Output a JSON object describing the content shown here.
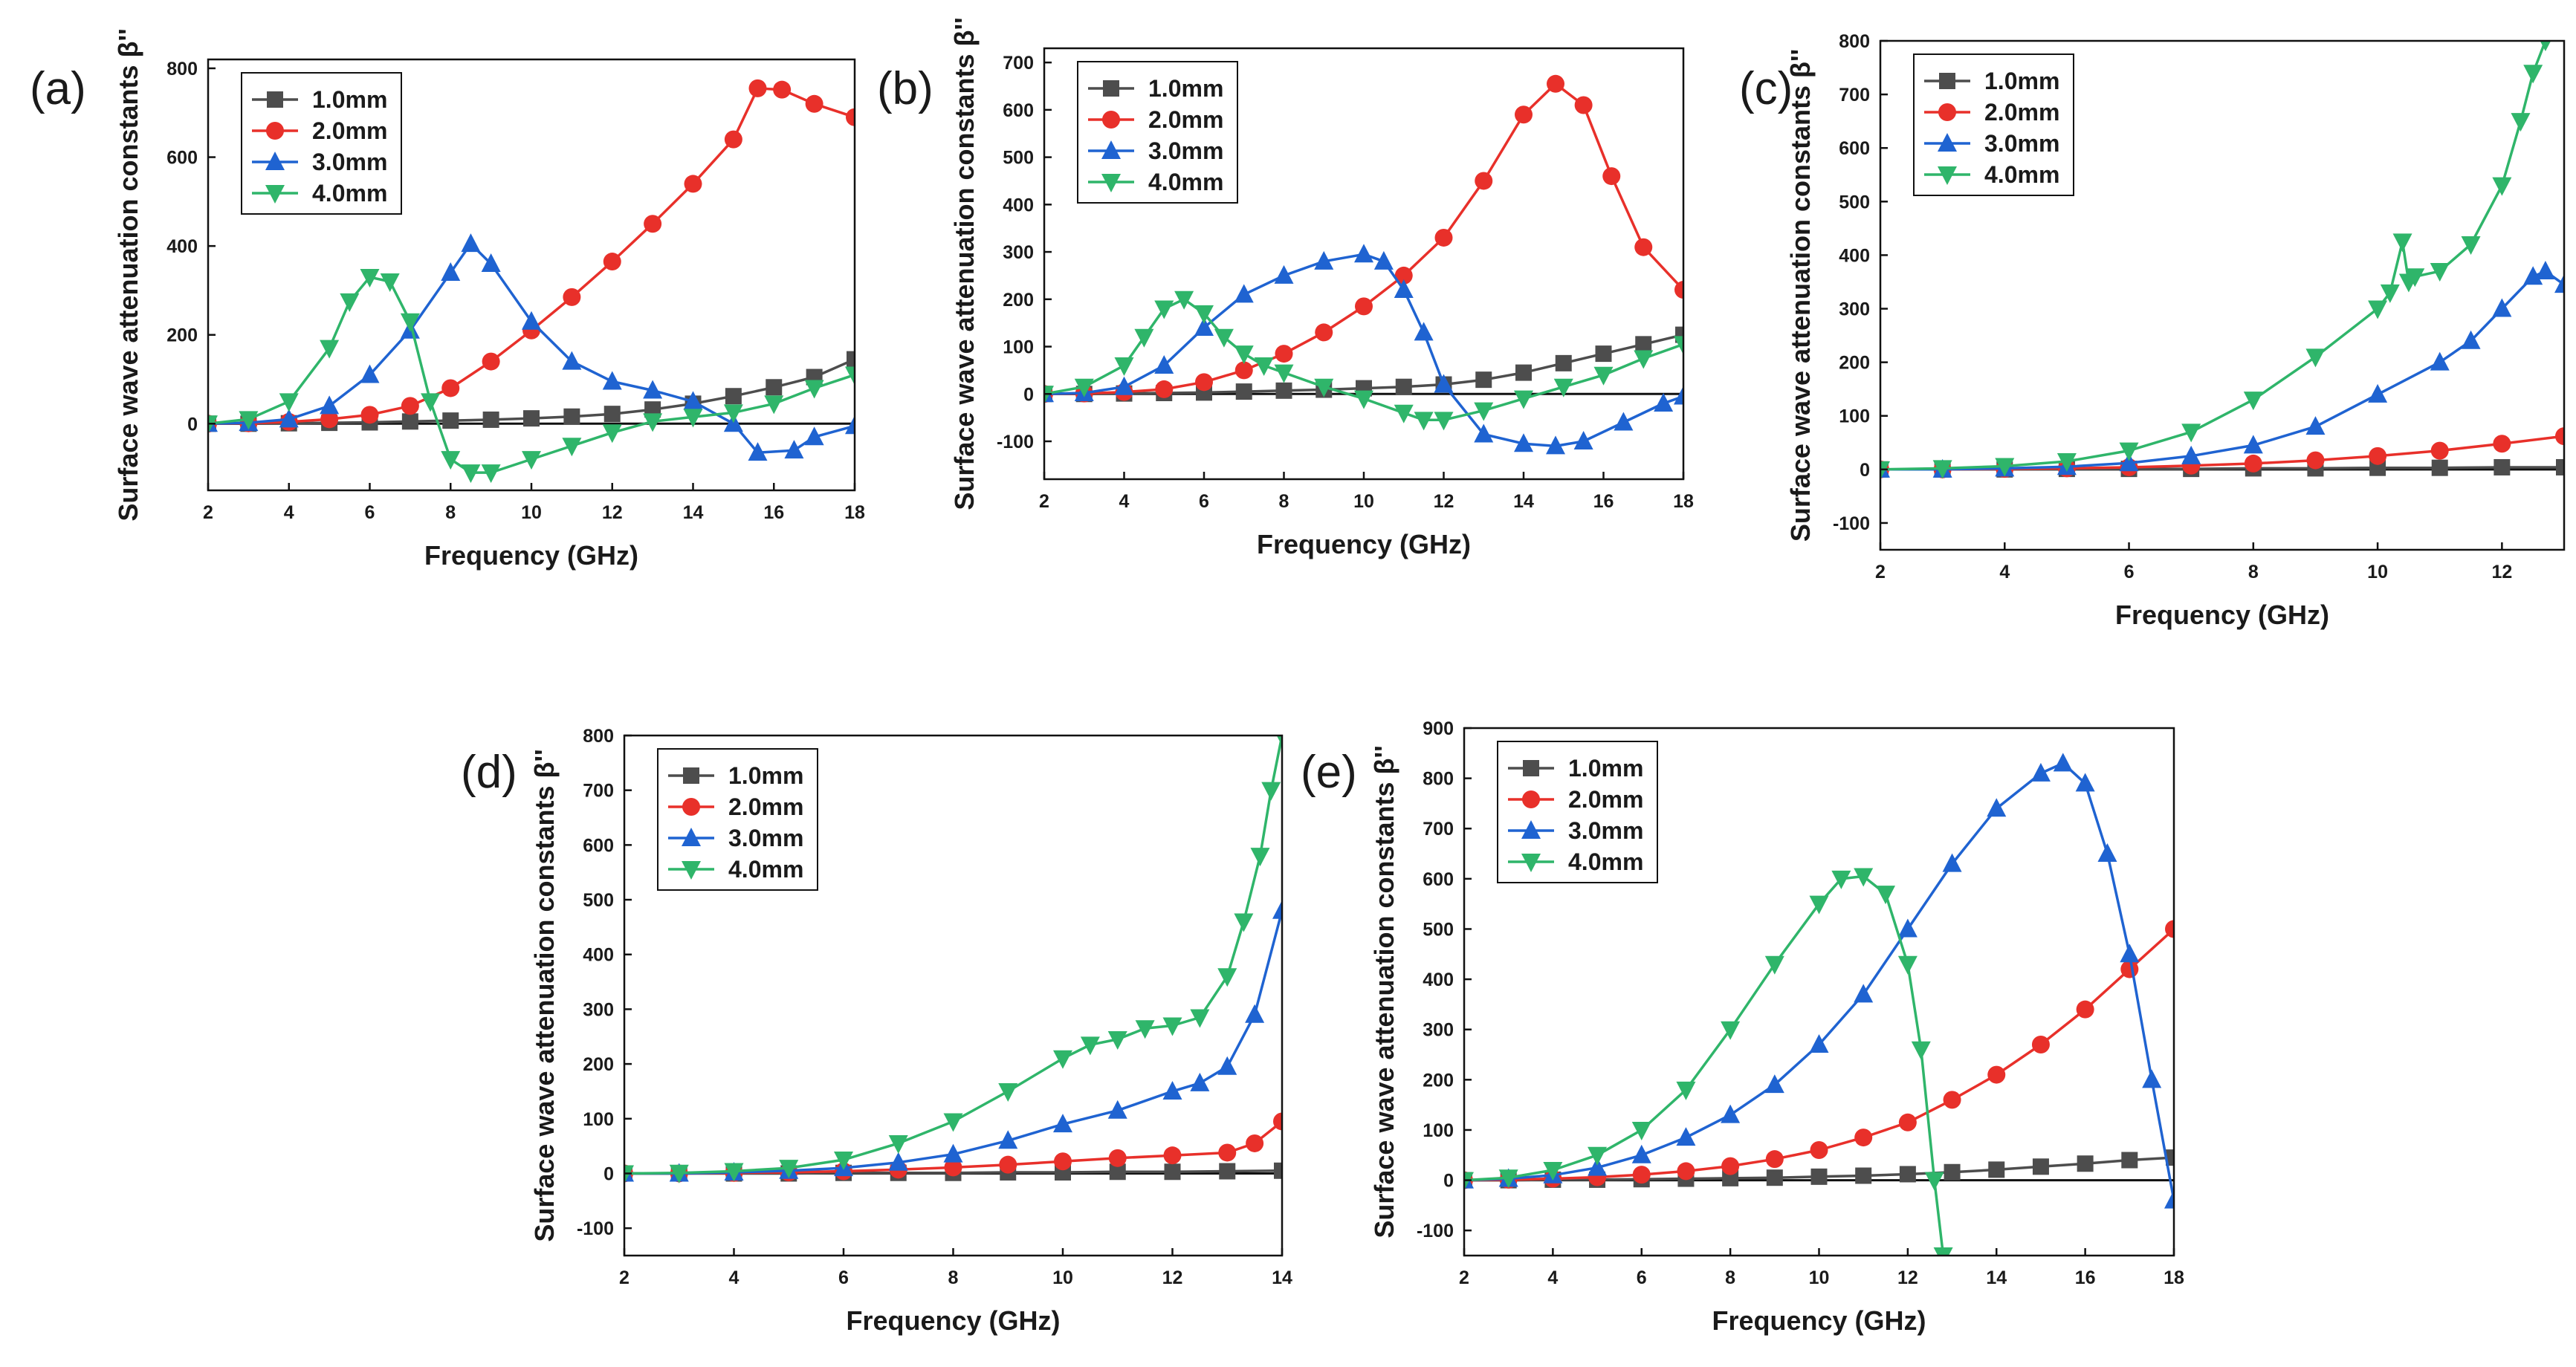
{
  "figure": {
    "colors": {
      "1.0mm": "#4d4d4d",
      "2.0mm": "#e8302a",
      "3.0mm": "#1f63d1",
      "4.0mm": "#2fb56a"
    },
    "markers": {
      "1.0mm": "square",
      "2.0mm": "circle",
      "3.0mm": "triangle-up",
      "4.0mm": "triangle-down"
    }
  },
  "chart_data": [
    {
      "panel": "(a)",
      "type": "line",
      "xlabel": "Frequency (GHz)",
      "ylabel": "Surface wave attenuation constants β''",
      "xlim": [
        2,
        18
      ],
      "ylim": [
        -150,
        820
      ],
      "xticks": [
        2,
        4,
        6,
        8,
        10,
        12,
        14,
        16,
        18
      ],
      "yticks": [
        0,
        200,
        400,
        600,
        800
      ],
      "legend": "top-left",
      "series": [
        {
          "name": "1.0mm",
          "x": [
            2,
            3,
            4,
            5,
            6,
            7,
            8,
            9,
            10,
            11,
            12,
            13,
            14,
            15,
            16,
            17,
            18
          ],
          "y": [
            0,
            0,
            1,
            2,
            3,
            5,
            7,
            9,
            12,
            16,
            22,
            32,
            45,
            62,
            82,
            105,
            145
          ]
        },
        {
          "name": "2.0mm",
          "x": [
            2,
            3,
            4,
            5,
            6,
            7,
            8,
            9,
            10,
            11,
            12,
            13,
            14,
            15,
            15.6,
            16.2,
            17,
            18
          ],
          "y": [
            0,
            1,
            4,
            10,
            20,
            40,
            80,
            140,
            210,
            285,
            365,
            450,
            540,
            640,
            755,
            752,
            720,
            690
          ]
        },
        {
          "name": "3.0mm",
          "x": [
            2,
            3,
            4,
            5,
            6,
            7,
            8,
            8.5,
            9,
            10,
            11,
            12,
            13,
            14,
            15,
            15.6,
            16.5,
            17,
            18
          ],
          "y": [
            0,
            2,
            10,
            40,
            110,
            210,
            340,
            405,
            360,
            230,
            140,
            95,
            75,
            50,
            0,
            -65,
            -60,
            -30,
            -5
          ]
        },
        {
          "name": "4.0mm",
          "x": [
            2,
            3,
            4,
            5,
            5.5,
            6,
            6.5,
            7,
            7.5,
            8,
            8.5,
            9,
            10,
            11,
            12,
            13,
            14,
            15,
            16,
            17,
            18
          ],
          "y": [
            0,
            10,
            50,
            170,
            275,
            330,
            320,
            230,
            50,
            -80,
            -110,
            -110,
            -80,
            -50,
            -20,
            5,
            15,
            25,
            45,
            80,
            110
          ]
        }
      ]
    },
    {
      "panel": "(b)",
      "type": "line",
      "xlabel": "Frequency (GHz)",
      "ylabel": "Surface wave attenuation constants β''",
      "xlim": [
        2,
        18
      ],
      "ylim": [
        -180,
        730
      ],
      "xticks": [
        2,
        4,
        6,
        8,
        10,
        12,
        14,
        16,
        18
      ],
      "yticks": [
        -100,
        0,
        100,
        200,
        300,
        400,
        500,
        600,
        700
      ],
      "legend": "top-left",
      "series": [
        {
          "name": "1.0mm",
          "x": [
            2,
            3,
            4,
            5,
            6,
            7,
            8,
            9,
            10,
            11,
            12,
            13,
            14,
            15,
            16,
            17,
            18
          ],
          "y": [
            0,
            0,
            1,
            2,
            3,
            5,
            7,
            9,
            12,
            15,
            20,
            30,
            45,
            65,
            85,
            105,
            125
          ]
        },
        {
          "name": "2.0mm",
          "x": [
            2,
            3,
            4,
            5,
            6,
            7,
            8,
            9,
            10,
            11,
            12,
            13,
            14,
            14.8,
            15.5,
            16.2,
            17,
            18
          ],
          "y": [
            0,
            1,
            4,
            10,
            25,
            50,
            85,
            130,
            185,
            250,
            330,
            450,
            590,
            655,
            610,
            460,
            310,
            220
          ]
        },
        {
          "name": "3.0mm",
          "x": [
            2,
            3,
            4,
            5,
            6,
            7,
            8,
            9,
            10,
            10.5,
            11,
            11.5,
            12,
            13,
            14,
            14.8,
            15.5,
            16.5,
            17.5,
            18
          ],
          "y": [
            0,
            2,
            15,
            60,
            140,
            210,
            250,
            280,
            295,
            280,
            220,
            130,
            20,
            -85,
            -105,
            -110,
            -100,
            -60,
            -20,
            -5
          ]
        },
        {
          "name": "4.0mm",
          "x": [
            2,
            3,
            4,
            4.5,
            5,
            5.5,
            6,
            6.5,
            7,
            7.5,
            8,
            9,
            10,
            11,
            11.5,
            12,
            13,
            14,
            15,
            16,
            17,
            18
          ],
          "y": [
            0,
            15,
            60,
            120,
            180,
            200,
            170,
            120,
            85,
            60,
            45,
            15,
            -10,
            -40,
            -55,
            -55,
            -35,
            -10,
            15,
            40,
            75,
            105
          ]
        }
      ]
    },
    {
      "panel": "(c)",
      "type": "line",
      "xlabel": "Frequency (GHz)",
      "ylabel": "Surface wave attenuation constants β''",
      "xlim": [
        2,
        13
      ],
      "ylim": [
        -150,
        800
      ],
      "xticks": [
        2,
        4,
        6,
        8,
        10,
        12
      ],
      "yticks": [
        -100,
        0,
        100,
        200,
        300,
        400,
        500,
        600,
        700,
        800
      ],
      "legend": "top-left",
      "series": [
        {
          "name": "1.0mm",
          "x": [
            2,
            3,
            4,
            5,
            6,
            7,
            8,
            9,
            10,
            11,
            12,
            13
          ],
          "y": [
            0,
            0,
            0,
            1,
            1,
            1,
            2,
            2,
            3,
            3,
            4,
            4
          ]
        },
        {
          "name": "2.0mm",
          "x": [
            2,
            3,
            4,
            5,
            6,
            7,
            8,
            9,
            10,
            11,
            12,
            13
          ],
          "y": [
            0,
            0,
            1,
            2,
            4,
            7,
            11,
            17,
            25,
            35,
            48,
            62
          ]
        },
        {
          "name": "3.0mm",
          "x": [
            2,
            3,
            4,
            5,
            6,
            7,
            8,
            9,
            10,
            11,
            11.5,
            12,
            12.5,
            12.7,
            13
          ],
          "y": [
            0,
            0,
            2,
            5,
            12,
            25,
            45,
            80,
            140,
            200,
            240,
            300,
            360,
            370,
            345
          ]
        },
        {
          "name": "4.0mm",
          "x": [
            2,
            3,
            4,
            5,
            6,
            7,
            8,
            9,
            10,
            10.2,
            10.4,
            10.5,
            10.6,
            11,
            11.5,
            12,
            12.3,
            12.5,
            12.7
          ],
          "y": [
            0,
            2,
            6,
            15,
            35,
            70,
            130,
            210,
            300,
            330,
            425,
            350,
            360,
            370,
            420,
            530,
            650,
            740,
            800
          ]
        }
      ]
    },
    {
      "panel": "(d)",
      "type": "line",
      "xlabel": "Frequency (GHz)",
      "ylabel": "Surface wave attenuation constants β''",
      "xlim": [
        2,
        14
      ],
      "ylim": [
        -150,
        800
      ],
      "xticks": [
        2,
        4,
        6,
        8,
        10,
        12,
        14
      ],
      "yticks": [
        -100,
        0,
        100,
        200,
        300,
        400,
        500,
        600,
        700,
        800
      ],
      "legend": "top-left",
      "series": [
        {
          "name": "1.0mm",
          "x": [
            2,
            3,
            4,
            5,
            6,
            7,
            8,
            9,
            10,
            11,
            12,
            13,
            14
          ],
          "y": [
            0,
            0,
            0,
            0,
            1,
            1,
            1,
            2,
            2,
            3,
            3,
            4,
            5
          ]
        },
        {
          "name": "2.0mm",
          "x": [
            2,
            3,
            4,
            5,
            6,
            7,
            8,
            9,
            10,
            11,
            12,
            13,
            13.5,
            14
          ],
          "y": [
            0,
            0,
            1,
            2,
            4,
            7,
            11,
            16,
            22,
            28,
            33,
            38,
            55,
            95
          ]
        },
        {
          "name": "3.0mm",
          "x": [
            2,
            3,
            4,
            5,
            6,
            7,
            8,
            9,
            10,
            11,
            12,
            12.5,
            13,
            13.5,
            14
          ],
          "y": [
            0,
            0,
            2,
            5,
            10,
            20,
            35,
            60,
            90,
            115,
            150,
            165,
            195,
            290,
            480
          ]
        },
        {
          "name": "4.0mm",
          "x": [
            2,
            3,
            4,
            5,
            6,
            7,
            8,
            9,
            10,
            10.5,
            11,
            11.5,
            12,
            12.5,
            13,
            13.3,
            13.6,
            13.8,
            14
          ],
          "y": [
            0,
            1,
            4,
            10,
            25,
            55,
            95,
            150,
            210,
            235,
            245,
            265,
            270,
            285,
            360,
            460,
            580,
            700,
            800
          ]
        }
      ]
    },
    {
      "panel": "(e)",
      "type": "line",
      "xlabel": "Frequency (GHz)",
      "ylabel": "Surface wave attenuation constants β''",
      "xlim": [
        2,
        18
      ],
      "ylim": [
        -150,
        900
      ],
      "xticks": [
        2,
        4,
        6,
        8,
        10,
        12,
        14,
        16,
        18
      ],
      "yticks": [
        -100,
        0,
        100,
        200,
        300,
        400,
        500,
        600,
        700,
        800,
        900
      ],
      "legend": "top-left",
      "series": [
        {
          "name": "1.0mm",
          "x": [
            2,
            3,
            4,
            5,
            6,
            7,
            8,
            9,
            10,
            11,
            12,
            13,
            14,
            15,
            16,
            17,
            18
          ],
          "y": [
            0,
            0,
            1,
            1,
            2,
            3,
            4,
            5,
            7,
            9,
            12,
            16,
            21,
            27,
            33,
            40,
            45
          ]
        },
        {
          "name": "2.0mm",
          "x": [
            2,
            3,
            4,
            5,
            6,
            7,
            8,
            9,
            10,
            11,
            12,
            13,
            14,
            15,
            16,
            17,
            18
          ],
          "y": [
            0,
            1,
            3,
            6,
            11,
            18,
            28,
            42,
            60,
            85,
            115,
            160,
            210,
            270,
            340,
            420,
            500
          ]
        },
        {
          "name": "3.0mm",
          "x": [
            2,
            3,
            4,
            5,
            6,
            7,
            8,
            9,
            10,
            11,
            12,
            13,
            14,
            15,
            15.5,
            16,
            16.5,
            17,
            17.5,
            18
          ],
          "y": [
            0,
            3,
            10,
            25,
            50,
            85,
            130,
            190,
            270,
            370,
            500,
            630,
            740,
            810,
            830,
            790,
            650,
            450,
            200,
            -40
          ]
        },
        {
          "name": "4.0mm",
          "x": [
            2,
            3,
            4,
            5,
            6,
            7,
            8,
            9,
            10,
            10.5,
            11,
            11.5,
            12,
            12.3,
            12.6,
            12.8
          ],
          "y": [
            0,
            5,
            20,
            50,
            100,
            180,
            300,
            430,
            550,
            600,
            605,
            570,
            430,
            260,
            0,
            -150
          ]
        }
      ]
    }
  ]
}
